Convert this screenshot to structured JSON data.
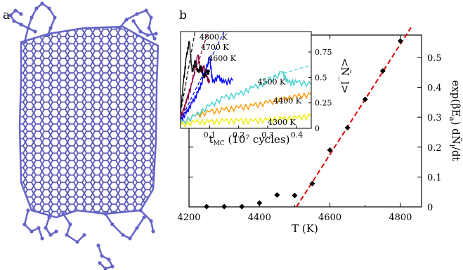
{
  "panels": {
    "a": "a",
    "b": "b"
  },
  "chart_data": [
    {
      "type": "scatter",
      "panel": "b",
      "xlabel": "T (K)",
      "ylabel": "exp(βE_a) dÑ_l/dt",
      "ylabel_parts": {
        "pre": "exp(βE",
        "sub": "a",
        "mid": ") dÑ",
        "sub2": "l",
        "post": "/dt"
      },
      "xlim": [
        4200,
        4860
      ],
      "ylim": [
        0,
        0.575
      ],
      "xticks": [
        4200,
        4400,
        4600,
        4800
      ],
      "xtick_labels": [
        "4200",
        "4400",
        "4600",
        "4800"
      ],
      "yticks": [
        0,
        0.1,
        0.2,
        0.3,
        0.4,
        0.5
      ],
      "ytick_labels": [
        "0",
        "0.1",
        "0.2",
        "0.3",
        "0.4",
        "0.5"
      ],
      "series": [
        {
          "marker": "diamond",
          "color": "#000000",
          "x": [
            4250,
            4300,
            4350,
            4400,
            4450,
            4500,
            4550,
            4600,
            4650,
            4700,
            4750,
            4800
          ],
          "y": [
            0.001,
            0.001,
            0.001,
            0.013,
            0.04,
            0.038,
            0.078,
            0.19,
            0.265,
            0.36,
            0.455,
            0.555
          ]
        }
      ],
      "fit_line": {
        "style": "dashed",
        "color": "#dd0000",
        "x": [
          4505,
          4830
        ],
        "y": [
          0.0,
          0.6
        ]
      }
    },
    {
      "type": "line",
      "panel": "b-inset",
      "xlabel": "t_MC (10^7 cycles)",
      "xlabel_parts": {
        "pre": "t",
        "sub": "MC",
        "post": " (10",
        "sup": "7",
        "tail": " cycles)"
      },
      "ylabel": "<Ñ_l>",
      "xlim": [
        0,
        0.45
      ],
      "ylim": [
        0,
        0.95
      ],
      "xticks": [
        0.1,
        0.2,
        0.3,
        0.4
      ],
      "xtick_labels": [
        "0.1",
        "0.2",
        "0.3",
        "0.4"
      ],
      "yticks": [
        0,
        0.25,
        0.5,
        0.75
      ],
      "ytick_labels": [
        "0",
        "0.25",
        "0.5",
        "0.75"
      ],
      "series": [
        {
          "name": "4800 K",
          "color": "#000000",
          "x": [
            0,
            0.01,
            0.02,
            0.03,
            0.04,
            0.05,
            0.06,
            0.07,
            0.08,
            0.09,
            0.1
          ],
          "y": [
            0.15,
            0.45,
            0.7,
            0.85,
            0.55,
            0.65,
            0.55,
            0.6,
            0.5,
            0.55,
            0.55
          ]
        },
        {
          "name": "4700 K",
          "color": "#800040",
          "x": [
            0,
            0.02,
            0.04,
            0.06,
            0.07,
            0.08,
            0.09,
            0.1
          ],
          "y": [
            0.1,
            0.25,
            0.45,
            0.72,
            0.55,
            0.6,
            0.5,
            0.45
          ]
        },
        {
          "name": "4600 K",
          "color": "#0000ff",
          "x": [
            0,
            0.02,
            0.04,
            0.06,
            0.08,
            0.1,
            0.11,
            0.13,
            0.15,
            0.18
          ],
          "y": [
            0.08,
            0.15,
            0.25,
            0.35,
            0.5,
            0.7,
            0.45,
            0.5,
            0.45,
            0.47
          ]
        },
        {
          "name": "4500 K",
          "color": "#40d0d0",
          "x": [
            0,
            0.05,
            0.1,
            0.15,
            0.2,
            0.25,
            0.3,
            0.35,
            0.37,
            0.4,
            0.45
          ],
          "y": [
            0.05,
            0.12,
            0.22,
            0.3,
            0.33,
            0.4,
            0.45,
            0.55,
            0.45,
            0.45,
            0.43
          ]
        },
        {
          "name": "4400 K",
          "color": "#ff9900",
          "x": [
            0,
            0.05,
            0.1,
            0.15,
            0.2,
            0.25,
            0.3,
            0.35,
            0.4,
            0.45
          ],
          "y": [
            0.05,
            0.12,
            0.16,
            0.18,
            0.2,
            0.22,
            0.25,
            0.28,
            0.31,
            0.33
          ]
        },
        {
          "name": "4300 K",
          "color": "#eeee00",
          "x": [
            0,
            0.05,
            0.1,
            0.15,
            0.2,
            0.25,
            0.3,
            0.35,
            0.4,
            0.45
          ],
          "y": [
            0.03,
            0.06,
            0.06,
            0.07,
            0.07,
            0.07,
            0.08,
            0.09,
            0.1,
            0.12
          ]
        }
      ],
      "fit_lines": [
        {
          "color": "#000000",
          "x": [
            0,
            0.05
          ],
          "y": [
            0.15,
            0.95
          ]
        },
        {
          "color": "#800040",
          "x": [
            0,
            0.095
          ],
          "y": [
            0.1,
            0.95
          ]
        },
        {
          "color": "#0000ff",
          "x": [
            0,
            0.15
          ],
          "y": [
            0.08,
            0.95
          ]
        },
        {
          "color": "#40d0d0",
          "x": [
            0.28,
            0.45
          ],
          "y": [
            0.48,
            0.62
          ]
        }
      ]
    }
  ],
  "image_a": {
    "sheet_color": "#5a5ab8",
    "atom_color": "#6464c8"
  }
}
